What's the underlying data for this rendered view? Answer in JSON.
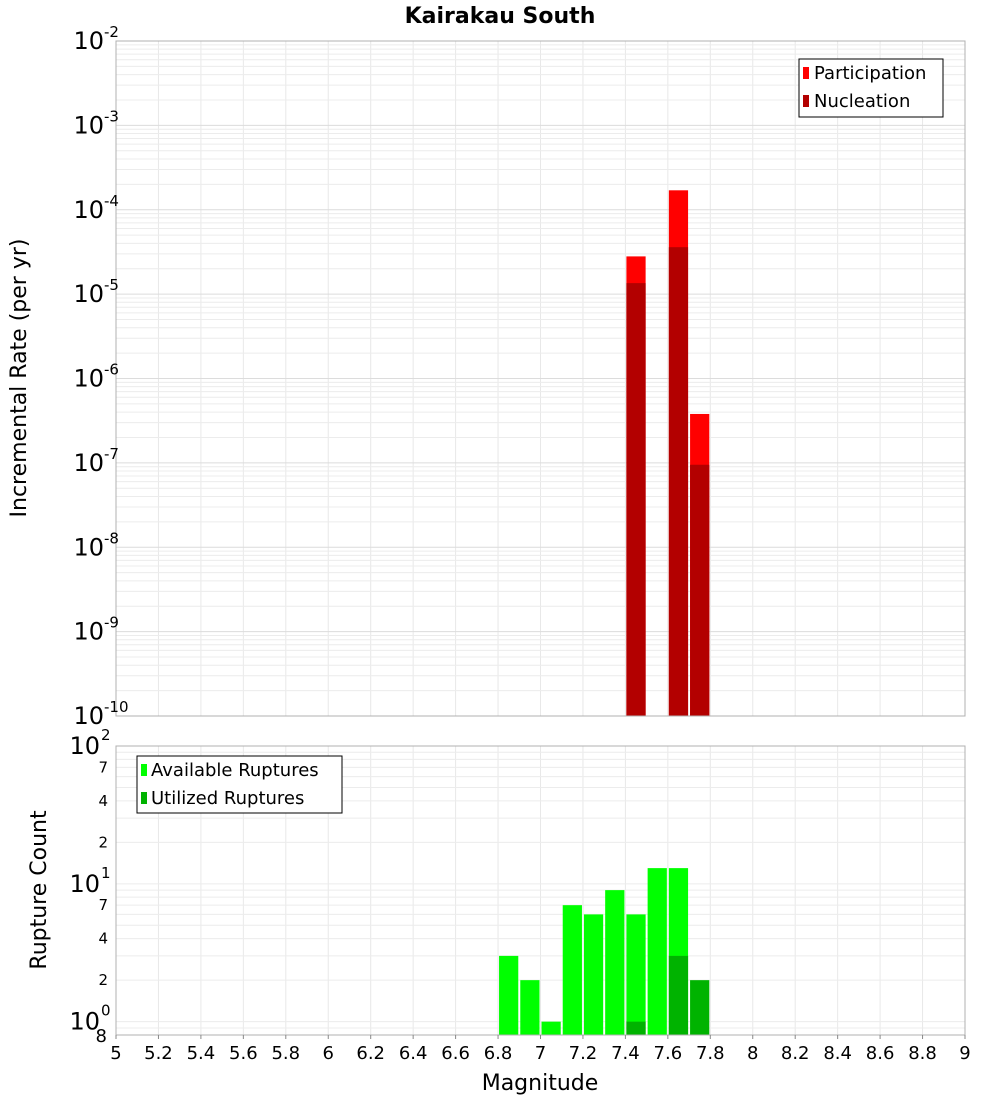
{
  "chart_data": [
    {
      "type": "bar",
      "title": "Kairakau South",
      "xlabel": "",
      "ylabel": "Incremental Rate (per yr)",
      "y_scale": "log",
      "ylim": [
        1e-10,
        0.01
      ],
      "xlim": [
        5.0,
        9.0
      ],
      "y_ticks": [
        {
          "base": "10",
          "exp": "-10"
        },
        {
          "base": "10",
          "exp": "-9"
        },
        {
          "base": "10",
          "exp": "-8"
        },
        {
          "base": "10",
          "exp": "-7"
        },
        {
          "base": "10",
          "exp": "-6"
        },
        {
          "base": "10",
          "exp": "-5"
        },
        {
          "base": "10",
          "exp": "-4"
        },
        {
          "base": "10",
          "exp": "-3"
        },
        {
          "base": "10",
          "exp": "-2"
        }
      ],
      "grid": true,
      "legend_position": "top-right",
      "series": [
        {
          "name": "Participation",
          "color": "#ff0000",
          "points": [
            {
              "x": 7.45,
              "y": 2.8e-05
            },
            {
              "x": 7.65,
              "y": 0.00017
            },
            {
              "x": 7.75,
              "y": 3.8e-07
            }
          ]
        },
        {
          "name": "Nucleation",
          "color": "#b30000",
          "points": [
            {
              "x": 7.45,
              "y": 1.35e-05
            },
            {
              "x": 7.65,
              "y": 3.6e-05
            },
            {
              "x": 7.75,
              "y": 9.5e-08
            }
          ]
        }
      ]
    },
    {
      "type": "bar",
      "xlabel": "Magnitude",
      "ylabel": "Rupture Count",
      "y_scale": "log",
      "ylim": [
        0.8,
        100
      ],
      "xlim": [
        5.0,
        9.0
      ],
      "x_ticks": [
        "5",
        "5.2",
        "5.4",
        "5.6",
        "5.8",
        "6",
        "6.2",
        "6.4",
        "6.6",
        "6.8",
        "7",
        "7.2",
        "7.4",
        "7.6",
        "7.8",
        "8",
        "8.2",
        "8.4",
        "8.6",
        "8.8",
        "9"
      ],
      "y_major_ticks": [
        {
          "value": 1,
          "base": "10",
          "exp": "0"
        },
        {
          "value": 10,
          "base": "10",
          "exp": "1"
        },
        {
          "value": 100,
          "base": "10",
          "exp": "2"
        }
      ],
      "y_minor_ticks": [
        {
          "value": 0.8,
          "label": "8"
        },
        {
          "value": 2,
          "label": "2"
        },
        {
          "value": 4,
          "label": "4"
        },
        {
          "value": 7,
          "label": "7"
        },
        {
          "value": 20,
          "label": "2"
        },
        {
          "value": 40,
          "label": "4"
        },
        {
          "value": 70,
          "label": "7"
        }
      ],
      "grid": true,
      "legend_position": "top-left",
      "series": [
        {
          "name": "Available Ruptures",
          "color": "#00ff00",
          "points": [
            {
              "x": 6.85,
              "y": 3
            },
            {
              "x": 6.95,
              "y": 2
            },
            {
              "x": 7.05,
              "y": 1
            },
            {
              "x": 7.15,
              "y": 7
            },
            {
              "x": 7.25,
              "y": 6
            },
            {
              "x": 7.35,
              "y": 9
            },
            {
              "x": 7.45,
              "y": 6
            },
            {
              "x": 7.55,
              "y": 13
            },
            {
              "x": 7.65,
              "y": 13
            }
          ]
        },
        {
          "name": "Utilized Ruptures",
          "color": "#00b300",
          "points": [
            {
              "x": 7.45,
              "y": 1
            },
            {
              "x": 7.65,
              "y": 3
            },
            {
              "x": 7.75,
              "y": 2
            }
          ]
        }
      ]
    }
  ]
}
